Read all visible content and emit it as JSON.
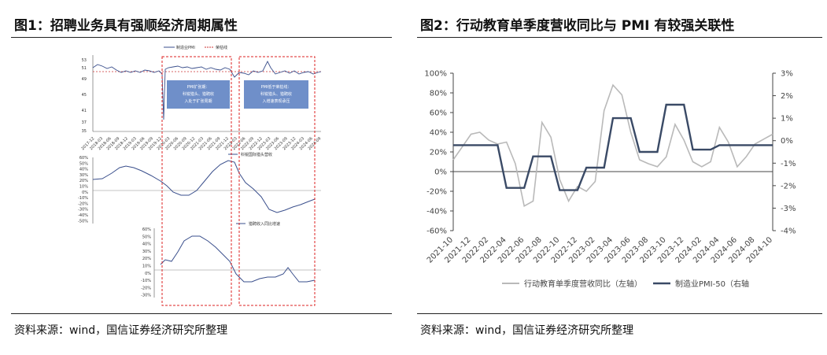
{
  "left": {
    "title": "图1：招聘业务具有强顺经济周期属性",
    "source": "资料来源：wind，国信证券经济研究所整理",
    "top_chart": {
      "legend": [
        "制造业PMI",
        "荣枯线"
      ],
      "yticks": [
        "53",
        "51",
        "49",
        "45",
        "41",
        "37",
        "35"
      ],
      "xticks": [
        "2017-12",
        "2018-03",
        "2018-06",
        "2018-09",
        "2018-12",
        "2019-03",
        "2019-06",
        "2019-09",
        "2019-12",
        "2020-03",
        "2020-06",
        "2020-09",
        "2020-12",
        "2021-03",
        "2021-06",
        "2021-09",
        "2021-12",
        "2022-03",
        "2022-06",
        "2022-09",
        "2022-12",
        "2023-03",
        "2023-06",
        "2023-09",
        "2023-12",
        "2024-03",
        "2024-06",
        "2024-09"
      ],
      "box1_text": [
        "PMI扩张期：",
        "科锐猎头、猎聘收",
        "入处于扩张周期"
      ],
      "box2_text": [
        "PMI低于荣枯线：",
        "科锐猎头、猎聘收",
        "入增速表现承压"
      ]
    },
    "mid_chart": {
      "legend": "科锐国际猎头营收",
      "yticks": [
        "60%",
        "50%",
        "40%",
        "30%",
        "20%",
        "10%",
        "0%",
        "-10%",
        "-20%",
        "-30%",
        "-40%",
        "-50%"
      ]
    },
    "bottom_chart": {
      "legend": "猎聘收入同比增速",
      "yticks": [
        "60%",
        "50%",
        "40%",
        "30%",
        "20%",
        "10%",
        "0%",
        "-10%",
        "-20%",
        "-30%"
      ]
    }
  },
  "right": {
    "title": "图2：行动教育单季度营收同比与 PMI 有较强关联性",
    "source": "资料来源：wind，国信证券经济研究所整理",
    "legend": [
      "行动教育单季度营收同比（左轴）",
      "制造业PMI-50（右轴"
    ],
    "colors": {
      "education": "#b9b9b9",
      "pmi": "#3a4a66"
    },
    "chart_data": {
      "type": "line",
      "x": [
        "2021-10",
        "2021-11",
        "2021-12",
        "2022-01",
        "2022-02",
        "2022-03",
        "2022-04",
        "2022-05",
        "2022-06",
        "2022-07",
        "2022-08",
        "2022-09",
        "2022-10",
        "2022-11",
        "2022-12",
        "2023-01",
        "2023-02",
        "2023-03",
        "2023-04",
        "2023-05",
        "2023-06",
        "2023-07",
        "2023-08",
        "2023-09",
        "2023-10",
        "2023-11",
        "2023-12",
        "2024-01",
        "2024-02",
        "2024-03",
        "2024-04",
        "2024-05",
        "2024-06",
        "2024-07",
        "2024-08",
        "2024-09",
        "2024-10"
      ],
      "xtick_labels": [
        "2021-10",
        "2021-12",
        "2022-02",
        "2022-04",
        "2022-06",
        "2022-08",
        "2022-10",
        "2022-12",
        "2023-02",
        "2023-04",
        "2023-06",
        "2023-08",
        "2023-10",
        "2023-12",
        "2024-02",
        "2024-04",
        "2024-06",
        "2024-08",
        "2024-10"
      ],
      "left_axis": {
        "ticks": [
          "100%",
          "80%",
          "60%",
          "40%",
          "20%",
          "0%",
          "-20%",
          "-40%",
          "-60%"
        ],
        "ylim": [
          -60,
          100
        ]
      },
      "right_axis": {
        "ticks": [
          "3%",
          "2%",
          "1%",
          "0%",
          "-1%",
          "-2%",
          "-3%",
          "-4%"
        ],
        "ylim": [
          -4,
          3
        ]
      },
      "series": [
        {
          "name": "行动教育单季度营收同比（左轴）",
          "axis": "left",
          "values": [
            12,
            25,
            38,
            40,
            32,
            28,
            30,
            8,
            -35,
            -30,
            50,
            35,
            -8,
            -30,
            -15,
            -20,
            -10,
            62,
            88,
            78,
            40,
            12,
            8,
            5,
            15,
            48,
            32,
            10,
            5,
            10,
            45,
            30,
            5,
            15,
            28,
            33,
            38
          ]
        },
        {
          "name": "制造业PMI-50（右轴",
          "axis": "right",
          "values": [
            -0.2,
            -0.2,
            -0.2,
            -0.2,
            -0.2,
            -0.2,
            -2.1,
            -2.1,
            -2.1,
            -0.7,
            -0.7,
            -0.7,
            -2.2,
            -2.2,
            -2.2,
            -1.2,
            -1.2,
            -1.2,
            1.0,
            1.0,
            1.0,
            -0.5,
            -0.5,
            -0.5,
            1.6,
            1.6,
            1.6,
            -0.4,
            -0.4,
            -0.4,
            -0.2,
            -0.2,
            -0.2,
            -0.2,
            -0.2,
            -0.2,
            -0.2
          ]
        }
      ]
    }
  }
}
